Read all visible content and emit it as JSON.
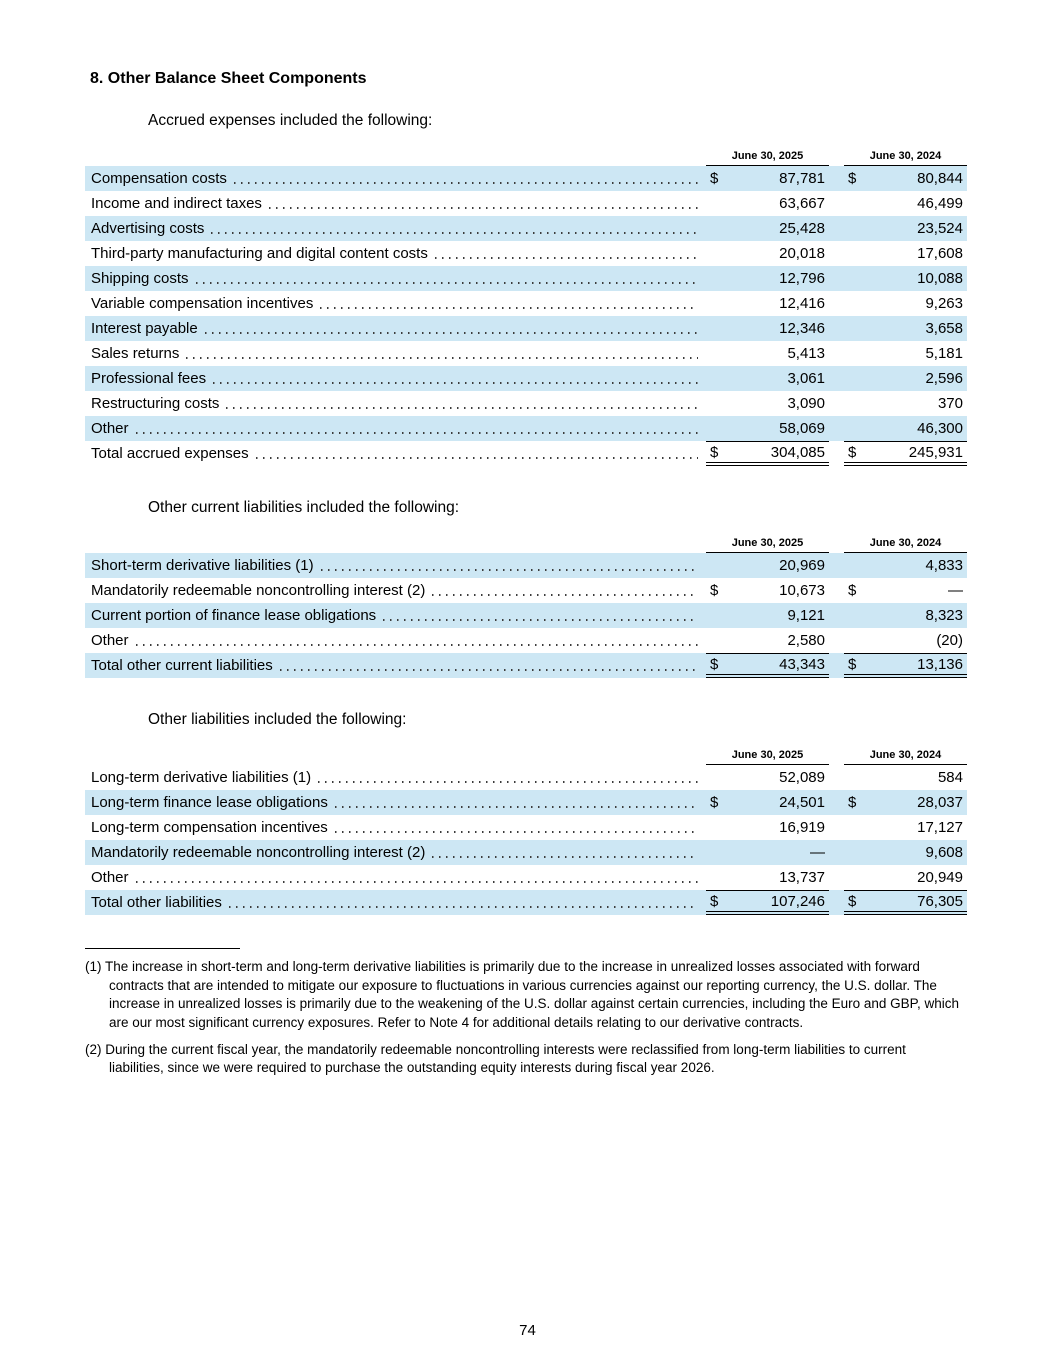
{
  "page": {
    "heading": "8. Other Balance Sheet Components",
    "page_number": "74"
  },
  "colors": {
    "row_shade": "#cde7f4"
  },
  "tables": [
    {
      "intro": "Accrued expenses included the following:",
      "col_headers": [
        "June 30, 2025",
        "June 30, 2024"
      ],
      "rows": [
        {
          "label": "Compensation costs",
          "d1": "$",
          "v1": "87,781",
          "d2": "$",
          "v2": "80,844",
          "shaded": true
        },
        {
          "label": "Income and indirect taxes",
          "v1": "63,667",
          "v2": "46,499"
        },
        {
          "label": "Advertising costs",
          "v1": "25,428",
          "v2": "23,524",
          "shaded": true
        },
        {
          "label": "Third-party manufacturing and digital content costs",
          "v1": "20,018",
          "v2": "17,608"
        },
        {
          "label": "Shipping costs",
          "v1": "12,796",
          "v2": "10,088",
          "shaded": true
        },
        {
          "label": "Variable compensation incentives",
          "v1": "12,416",
          "v2": "9,263"
        },
        {
          "label": "Interest payable",
          "v1": "12,346",
          "v2": "3,658",
          "shaded": true
        },
        {
          "label": "Sales returns",
          "v1": "5,413",
          "v2": "5,181"
        },
        {
          "label": "Professional fees",
          "v1": "3,061",
          "v2": "2,596",
          "shaded": true
        },
        {
          "label": "Restructuring costs",
          "v1": "3,090",
          "v2": "370"
        },
        {
          "label": "Other",
          "v1": "58,069",
          "v2": "46,300",
          "shaded": true
        },
        {
          "label": "Total accrued expenses",
          "d1": "$",
          "v1": "304,085",
          "d2": "$",
          "v2": "245,931",
          "total": true
        }
      ]
    },
    {
      "intro": "Other current liabilities included the following:",
      "col_headers": [
        "June 30, 2025",
        "June 30, 2024"
      ],
      "rows": [
        {
          "label": "Short-term derivative liabilities (1)",
          "v1": "20,969",
          "v2": "4,833",
          "shaded": true
        },
        {
          "label": "Mandatorily redeemable noncontrolling interest (2)",
          "d1": "$",
          "v1": "10,673",
          "d2": "$",
          "v2": "—"
        },
        {
          "label": "Current portion of finance lease obligations",
          "v1": "9,121",
          "v2": "8,323",
          "shaded": true
        },
        {
          "label": "Other",
          "v1": "2,580",
          "v2": "(20)"
        },
        {
          "label": "Total other current liabilities",
          "d1": "$",
          "v1": "43,343",
          "d2": "$",
          "v2": "13,136",
          "shaded": true,
          "total": true
        }
      ]
    },
    {
      "intro": "Other liabilities included the following:",
      "col_headers": [
        "June 30, 2025",
        "June 30, 2024"
      ],
      "rows": [
        {
          "label": "Long-term derivative liabilities (1)",
          "v1": "52,089",
          "v2": "584"
        },
        {
          "label": "Long-term finance lease obligations",
          "d1": "$",
          "v1": "24,501",
          "d2": "$",
          "v2": "28,037",
          "shaded": true
        },
        {
          "label": "Long-term compensation incentives",
          "v1": "16,919",
          "v2": "17,127"
        },
        {
          "label": "Mandatorily redeemable noncontrolling interest (2)",
          "v1": "—",
          "v2": "9,608",
          "shaded": true
        },
        {
          "label": "Other",
          "v1": "13,737",
          "v2": "20,949"
        },
        {
          "label": "Total other liabilities",
          "d1": "$",
          "v1": "107,246",
          "d2": "$",
          "v2": "76,305",
          "shaded": true,
          "total": true
        }
      ]
    }
  ],
  "footnotes": [
    {
      "marker": "(1)",
      "text": "The increase in short-term and long-term derivative liabilities is primarily due to the increase in unrealized losses associated with forward contracts that are intended to mitigate our exposure to fluctuations in various currencies against our reporting currency, the U.S. dollar. The increase in unrealized losses is primarily due to the weakening of the U.S. dollar against certain currencies, including the Euro and GBP, which are our most significant currency exposures. Refer to Note 4 for additional details relating to our derivative contracts."
    },
    {
      "marker": "(2)",
      "text": "During the current fiscal year, the mandatorily redeemable noncontrolling interests were reclassified from long-term liabilities to current liabilities, since we were required to purchase the outstanding equity interests during fiscal year 2026."
    }
  ]
}
